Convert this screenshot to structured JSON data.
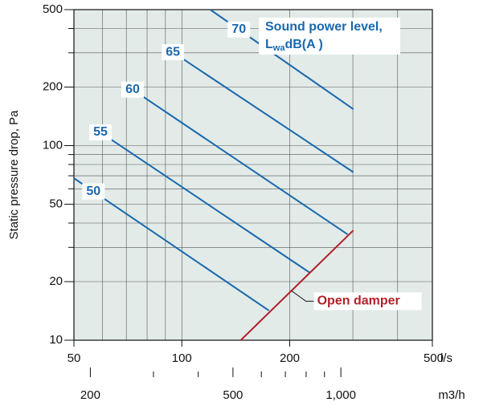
{
  "chart_data": {
    "type": "line",
    "xlabel": "l/s",
    "x2label": "m3/h",
    "ylabel": "Static pressure drop, Pa",
    "xscale": "log",
    "yscale": "log",
    "xlim": [
      50,
      500
    ],
    "xticks": [
      50,
      100,
      200,
      500
    ],
    "xminor": [
      60,
      70,
      80,
      90,
      300,
      400
    ],
    "x2lim": [
      180,
      1800
    ],
    "x2ticks": [
      200,
      500,
      {
        "value": 1000,
        "label": "1,000"
      }
    ],
    "x2minor": [
      300,
      400,
      600,
      700,
      800,
      900
    ],
    "ylim": [
      10,
      500
    ],
    "yticks": [
      10,
      20,
      50,
      100,
      200,
      500
    ],
    "yminor": [
      30,
      40,
      60,
      70,
      80,
      90,
      300,
      400
    ],
    "grid": true,
    "series": [
      {
        "name": "50",
        "color": "#1a68ae",
        "x": [
          50,
          175
        ],
        "values": [
          68,
          14.2
        ]
      },
      {
        "name": "55",
        "color": "#1a68ae",
        "x": [
          59.3,
          227
        ],
        "values": [
          117,
          22.3
        ]
      },
      {
        "name": "60",
        "color": "#1a68ae",
        "x": [
          72.9,
          290
        ],
        "values": [
          194,
          35
        ]
      },
      {
        "name": "65",
        "color": "#1a68ae",
        "x": [
          94.4,
          301
        ],
        "values": [
          302,
          73
        ]
      },
      {
        "name": "70",
        "color": "#1a68ae",
        "x": [
          120,
          301
        ],
        "values": [
          500,
          154
        ]
      },
      {
        "name": "Open damper",
        "color": "#b1212b",
        "x": [
          146,
          301
        ],
        "values": [
          10,
          36.7
        ]
      }
    ],
    "legend_title": {
      "line1": "Sound power level,",
      "main": "L",
      "sub": "wa",
      "rest": "dB(A )"
    }
  }
}
